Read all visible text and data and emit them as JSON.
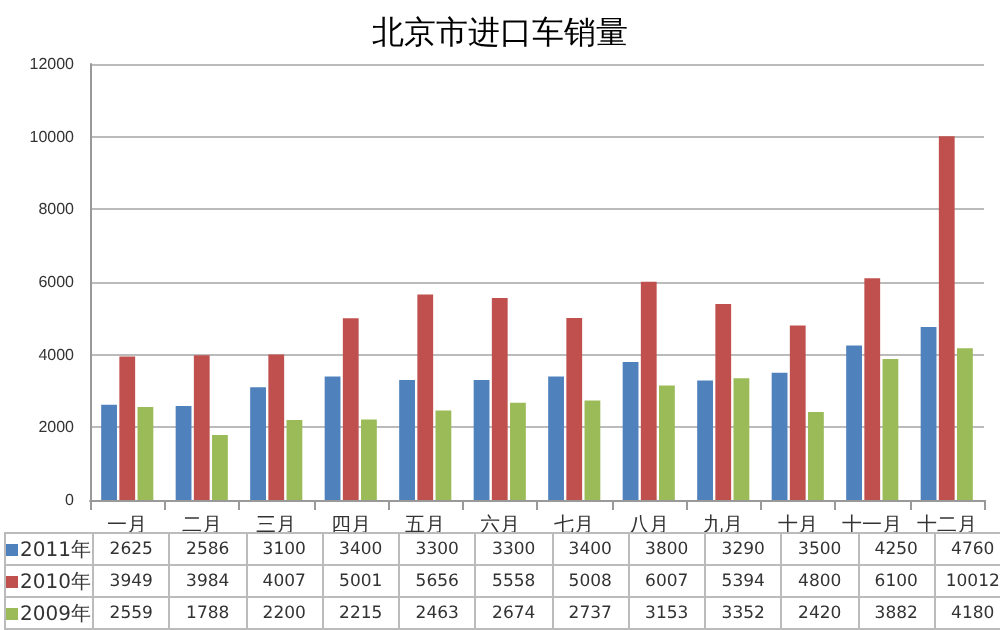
{
  "chart_data": {
    "type": "bar",
    "title": "北京市进口车销量",
    "categories": [
      "一月",
      "二月",
      "三月",
      "四月",
      "五月",
      "六月",
      "七月",
      "八月",
      "九月",
      "十月",
      "十一月",
      "十二月"
    ],
    "series": [
      {
        "name": "2011年",
        "color": "#4f81bd",
        "values": [
          2625,
          2586,
          3100,
          3400,
          3300,
          3300,
          3400,
          3800,
          3290,
          3500,
          4250,
          4760
        ]
      },
      {
        "name": "2010年",
        "color": "#c0504d",
        "values": [
          3949,
          3984,
          4007,
          5001,
          5656,
          5558,
          5008,
          6007,
          5394,
          4800,
          6100,
          10012
        ]
      },
      {
        "name": "2009年",
        "color": "#9bbb59",
        "values": [
          2559,
          1788,
          2200,
          2215,
          2463,
          2674,
          2737,
          3153,
          3352,
          2420,
          3882,
          4180
        ]
      }
    ],
    "ylim": [
      0,
      12000
    ],
    "yticks": [
      0,
      2000,
      4000,
      6000,
      8000,
      10000,
      12000
    ],
    "grid": "y",
    "data_labels": true,
    "legend": "bottom left"
  }
}
